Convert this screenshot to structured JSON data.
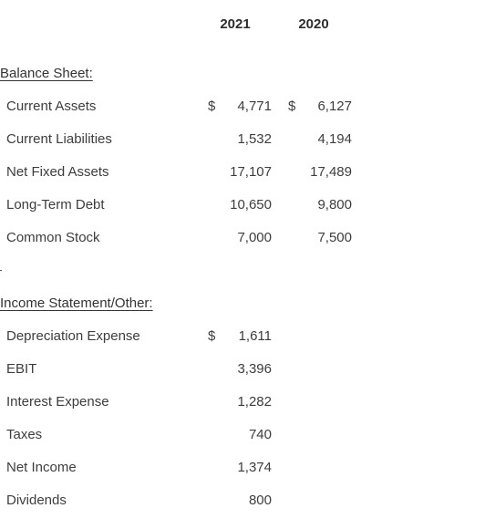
{
  "columns": {
    "year_1": "2021",
    "year_2": "2020"
  },
  "balance_sheet": {
    "title": "Balance Sheet:",
    "rows": [
      {
        "label": "Current Assets",
        "cur_2021": "$",
        "v2021": "4,771",
        "cur_2020": "$",
        "v2020": "6,127"
      },
      {
        "label": "Current Liabilities",
        "cur_2021": "",
        "v2021": "1,532",
        "cur_2020": "",
        "v2020": "4,194"
      },
      {
        "label": "Net Fixed Assets",
        "cur_2021": "",
        "v2021": "17,107",
        "cur_2020": "",
        "v2020": "17,489"
      },
      {
        "label": "Long-Term Debt",
        "cur_2021": "",
        "v2021": "10,650",
        "cur_2020": "",
        "v2020": "9,800"
      },
      {
        "label": "Common Stock",
        "cur_2021": "",
        "v2021": "7,000",
        "cur_2020": "",
        "v2020": "7,500"
      }
    ]
  },
  "income_statement": {
    "title": "Income Statement/Other:",
    "rows": [
      {
        "label": "Depreciation Expense",
        "cur_2021": "$",
        "v2021": "1,611"
      },
      {
        "label": "EBIT",
        "cur_2021": "",
        "v2021": "3,396"
      },
      {
        "label": "Interest Expense",
        "cur_2021": "",
        "v2021": "1,282"
      },
      {
        "label": "Taxes",
        "cur_2021": "",
        "v2021": "740"
      },
      {
        "label": "Net Income",
        "cur_2021": "",
        "v2021": "1,374"
      },
      {
        "label": "Dividends",
        "cur_2021": "",
        "v2021": "800"
      }
    ]
  }
}
